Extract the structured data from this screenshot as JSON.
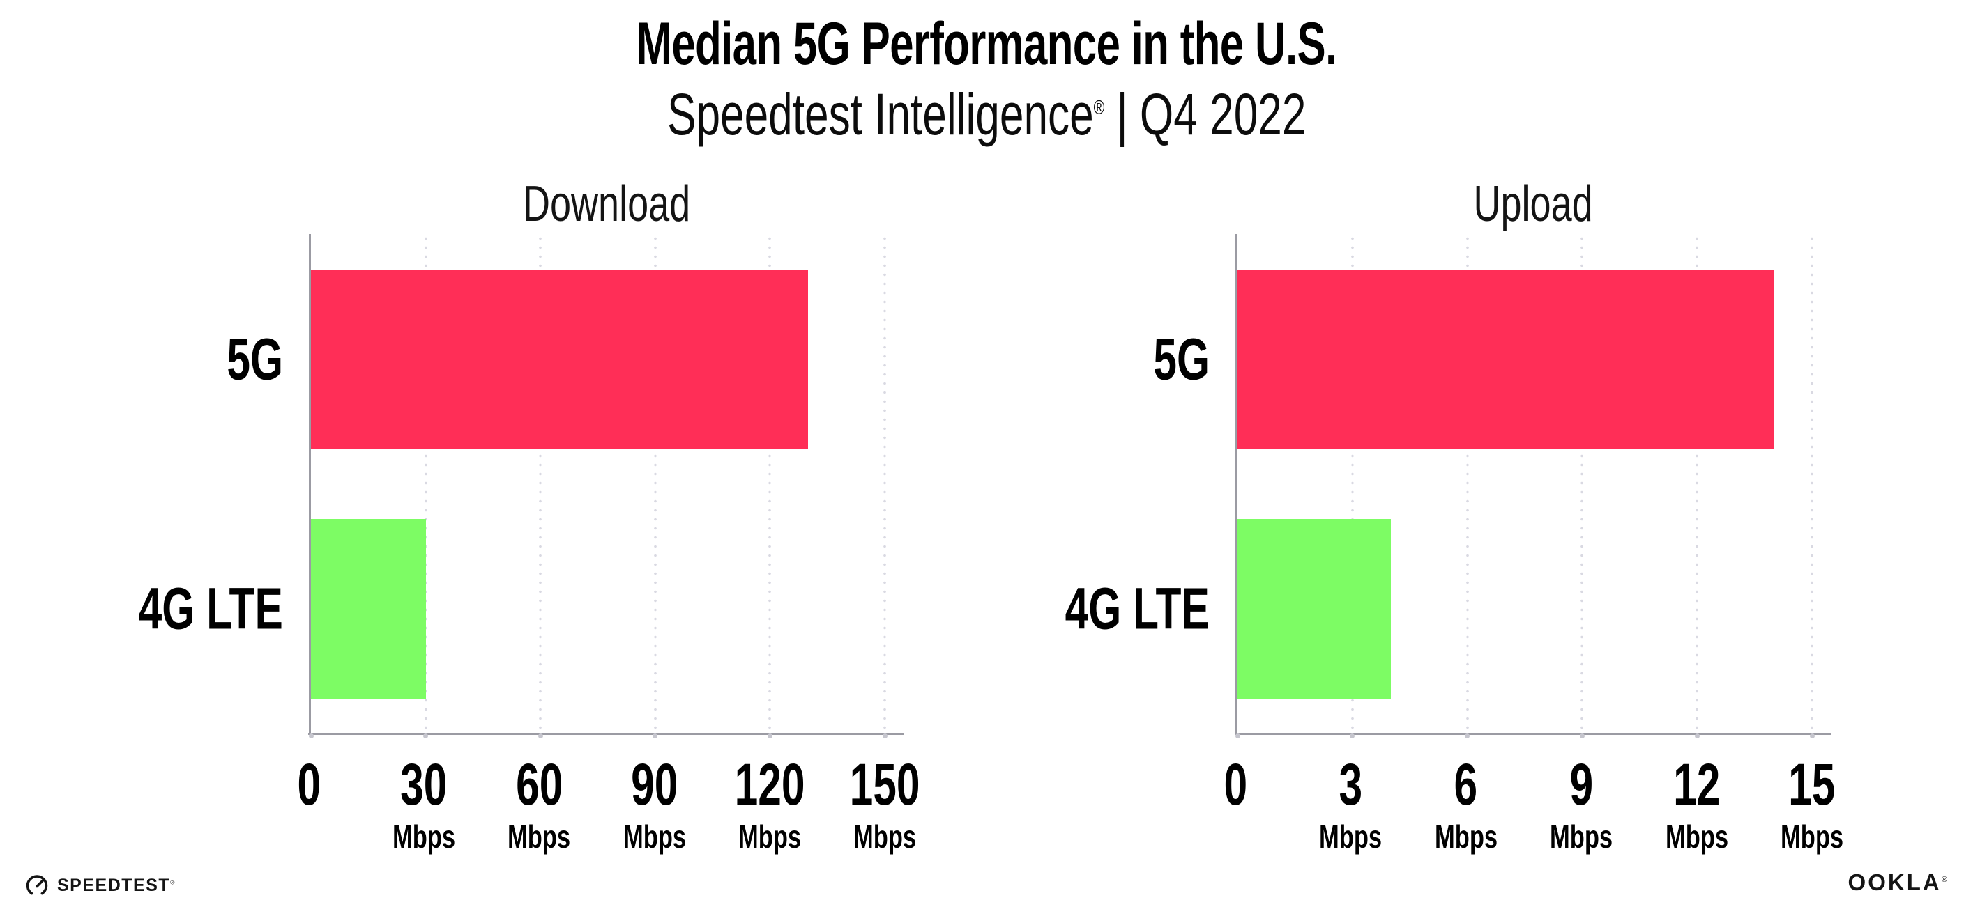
{
  "header": {
    "title": "Median 5G Performance in the U.S.",
    "subtitle": {
      "brand": "Speedtest Intelligence",
      "reg_mark": "®",
      "separator": " | ",
      "period": "Q4 2022"
    }
  },
  "chart_data": [
    {
      "type": "bar",
      "orientation": "horizontal",
      "title": "Download",
      "categories": [
        "5G",
        "4G LTE"
      ],
      "values": [
        130,
        30
      ],
      "unit": "Mbps",
      "xlim": [
        0,
        150
      ],
      "xticks": [
        0,
        30,
        60,
        90,
        120,
        150
      ],
      "bar_colors": [
        "#ff2e57",
        "#7dfc64"
      ],
      "grid": "dotted vertical gridlines at each tick",
      "legend": "none"
    },
    {
      "type": "bar",
      "orientation": "horizontal",
      "title": "Upload",
      "categories": [
        "5G",
        "4G LTE"
      ],
      "values": [
        14,
        4
      ],
      "unit": "Mbps",
      "xlim": [
        0,
        15
      ],
      "xticks": [
        0,
        3,
        6,
        9,
        12,
        15
      ],
      "bar_colors": [
        "#ff2e57",
        "#7dfc64"
      ],
      "grid": "dotted vertical gridlines at each tick",
      "legend": "none"
    }
  ],
  "footer": {
    "speedtest": {
      "label": "SPEEDTEST",
      "reg_mark": "®"
    },
    "ookla": {
      "label": "OOKLA",
      "reg_mark": "®"
    }
  },
  "colors": {
    "bar_5g": "#ff2e57",
    "bar_4g_lte": "#7dfc64",
    "axis_line": "#9b9ba3",
    "gridline_dot": "#d9d9e2",
    "tick_dot": "#c6c6ce",
    "text": "#000000"
  }
}
